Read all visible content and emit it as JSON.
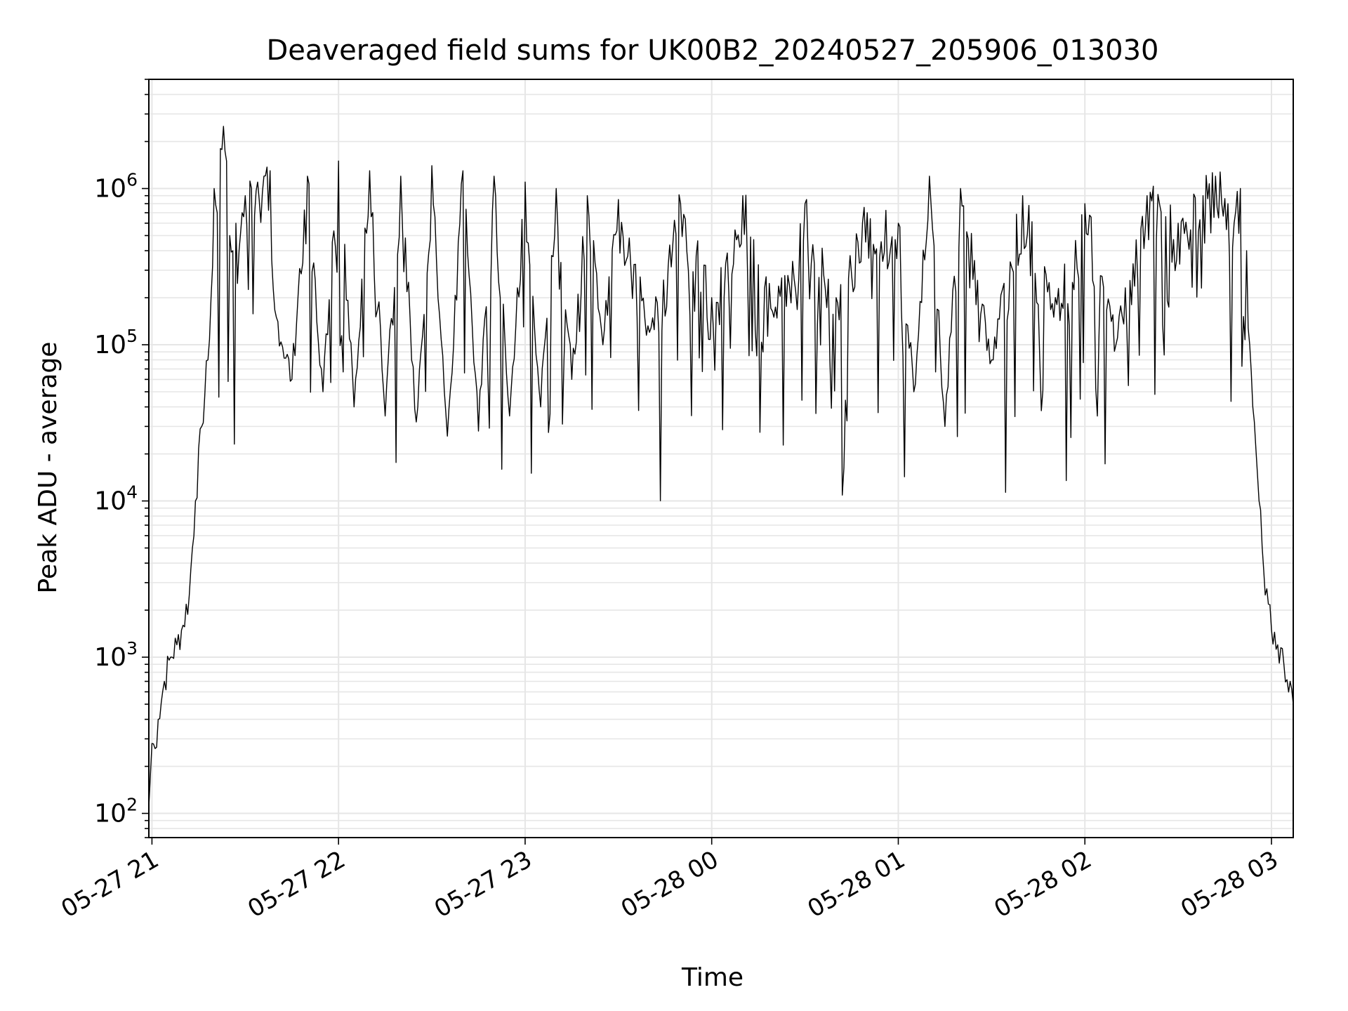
{
  "chart_data": {
    "type": "line",
    "title": "Deaveraged field sums for UK00B2_20240527_205906_013030",
    "xlabel": "Time",
    "ylabel": "Peak ADU - average",
    "y_scale": "log",
    "ylim": [
      70,
      5000000
    ],
    "xlim": [
      "2024-05-27 20:59",
      "2024-05-28 03:07"
    ],
    "grid": true,
    "legend": "none",
    "line_color": "#000000",
    "grid_color": "#e6e6e6",
    "x_ticks": [
      {
        "t": "2024-05-27 21:00",
        "label": "05-27 21"
      },
      {
        "t": "2024-05-27 22:00",
        "label": "05-27 22"
      },
      {
        "t": "2024-05-27 23:00",
        "label": "05-27 23"
      },
      {
        "t": "2024-05-28 00:00",
        "label": "05-28 00"
      },
      {
        "t": "2024-05-28 01:00",
        "label": "05-28 01"
      },
      {
        "t": "2024-05-28 02:00",
        "label": "05-28 02"
      },
      {
        "t": "2024-05-28 03:00",
        "label": "05-28 03"
      }
    ],
    "y_ticks": [
      {
        "value": 100,
        "base": "10",
        "exp": "2"
      },
      {
        "value": 1000,
        "base": "10",
        "exp": "3"
      },
      {
        "value": 10000,
        "base": "10",
        "exp": "4"
      },
      {
        "value": 100000,
        "base": "10",
        "exp": "5"
      },
      {
        "value": 1000000,
        "base": "10",
        "exp": "6"
      }
    ],
    "series": [
      {
        "x": [
          "2024-05-27 20:59",
          "2024-05-27 21:00",
          "2024-05-27 21:01",
          "2024-05-27 21:02",
          "2024-05-27 21:04",
          "2024-05-27 21:06",
          "2024-05-27 21:08",
          "2024-05-27 21:10",
          "2024-05-27 21:12",
          "2024-05-27 21:14",
          "2024-05-27 21:16",
          "2024-05-27 21:18",
          "2024-05-27 21:19",
          "2024-05-27 21:20",
          "2024-05-27 21:21",
          "2024-05-27 21:22",
          "2024-05-27 21:23",
          "2024-05-27 21:24",
          "2024-05-27 21:25",
          "2024-05-27 21:26",
          "2024-05-27 21:27",
          "2024-05-27 21:28",
          "2024-05-27 21:29",
          "2024-05-27 21:30",
          "2024-05-27 21:32",
          "2024-05-27 21:34",
          "2024-05-27 21:36",
          "2024-05-27 21:38",
          "2024-05-27 21:40",
          "2024-05-27 21:45",
          "2024-05-27 21:50",
          "2024-05-27 21:55",
          "2024-05-27 22:00",
          "2024-05-27 22:05",
          "2024-05-27 22:10",
          "2024-05-27 22:15",
          "2024-05-27 22:20",
          "2024-05-27 22:25",
          "2024-05-27 22:30",
          "2024-05-27 22:35",
          "2024-05-27 22:40",
          "2024-05-27 22:45",
          "2024-05-27 22:50",
          "2024-05-27 22:55",
          "2024-05-27 23:00",
          "2024-05-27 23:05",
          "2024-05-27 23:10",
          "2024-05-27 23:15",
          "2024-05-27 23:20",
          "2024-05-27 23:25",
          "2024-05-27 23:30",
          "2024-05-27 23:40",
          "2024-05-27 23:50",
          "2024-05-28 00:00",
          "2024-05-28 00:10",
          "2024-05-28 00:20",
          "2024-05-28 00:30",
          "2024-05-28 00:40",
          "2024-05-28 00:50",
          "2024-05-28 01:00",
          "2024-05-28 01:05",
          "2024-05-28 01:10",
          "2024-05-28 01:15",
          "2024-05-28 01:20",
          "2024-05-28 01:30",
          "2024-05-28 01:40",
          "2024-05-28 01:50",
          "2024-05-28 02:00",
          "2024-05-28 02:10",
          "2024-05-28 02:20",
          "2024-05-28 02:30",
          "2024-05-28 02:38",
          "2024-05-28 02:42",
          "2024-05-28 02:46",
          "2024-05-28 02:48",
          "2024-05-28 02:50",
          "2024-05-28 02:52",
          "2024-05-28 02:53",
          "2024-05-28 02:54",
          "2024-05-28 02:56",
          "2024-05-28 02:58",
          "2024-05-28 03:00",
          "2024-05-28 03:02",
          "2024-05-28 03:04",
          "2024-05-28 03:06",
          "2024-05-28 03:07"
        ],
        "y": [
          110,
          280,
          260,
          400,
          700,
          1000,
          1200,
          1600,
          2500,
          10000,
          30000,
          80000,
          200000,
          1000000,
          700000,
          1800000,
          2500000,
          1500000,
          500000,
          400000,
          600000,
          400000,
          700000,
          900000,
          1000000,
          1100000,
          1200000,
          1300000,
          150000,
          60000,
          1200000,
          50000,
          1500000,
          40000,
          1300000,
          35000,
          1200000,
          32000,
          1400000,
          26000,
          1300000,
          28000,
          1200000,
          35000,
          1100000,
          40000,
          1000000,
          60000,
          900000,
          100000,
          850000,
          120000,
          800000,
          200000,
          900000,
          150000,
          800000,
          200000,
          700000,
          600000,
          50000,
          1200000,
          30000,
          1000000,
          80000,
          900000,
          150000,
          800000,
          100000,
          900000,
          600000,
          900000,
          1200000,
          800000,
          600000,
          1000000,
          400000,
          100000,
          40000,
          10000,
          2500,
          1500,
          1200,
          900,
          700,
          500
        ]
      }
    ]
  }
}
